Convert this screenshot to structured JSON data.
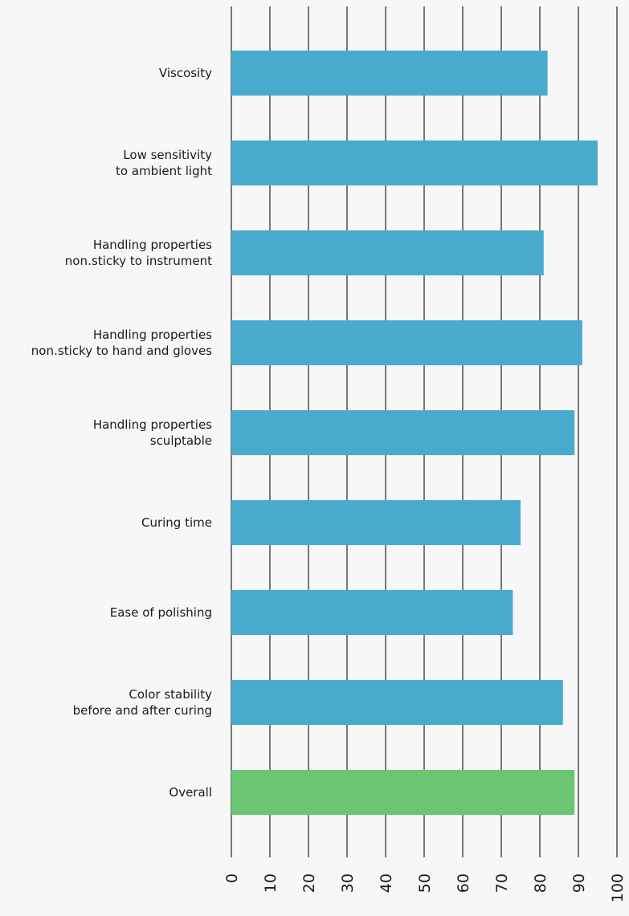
{
  "chart_data": {
    "type": "bar",
    "orientation": "horizontal",
    "categories": [
      [
        "Viscosity"
      ],
      [
        "Low sensitivity",
        "to ambient light"
      ],
      [
        "Handling properties",
        "non․sticky to instrument"
      ],
      [
        "Handling properties",
        "non․sticky to hand and gloves"
      ],
      [
        "Handling properties",
        "sculptable"
      ],
      [
        "Curing time"
      ],
      [
        "Ease of polishing"
      ],
      [
        "Color stability",
        "before and after curing"
      ],
      [
        "Overall"
      ]
    ],
    "values": [
      82,
      95,
      81,
      91,
      89,
      75,
      73,
      86,
      89
    ],
    "bar_colors": [
      "#4aaacd",
      "#4aaacd",
      "#4aaacd",
      "#4aaacd",
      "#4aaacd",
      "#4aaacd",
      "#4aaacd",
      "#4aaacd",
      "#6cc573"
    ],
    "xlim": [
      0,
      100
    ],
    "xticks": [
      "0",
      "10",
      "20",
      "30",
      "40",
      "50",
      "60",
      "70",
      "80",
      "90",
      "100"
    ],
    "grid": "vertical",
    "title": "",
    "xlabel": "",
    "ylabel": ""
  }
}
